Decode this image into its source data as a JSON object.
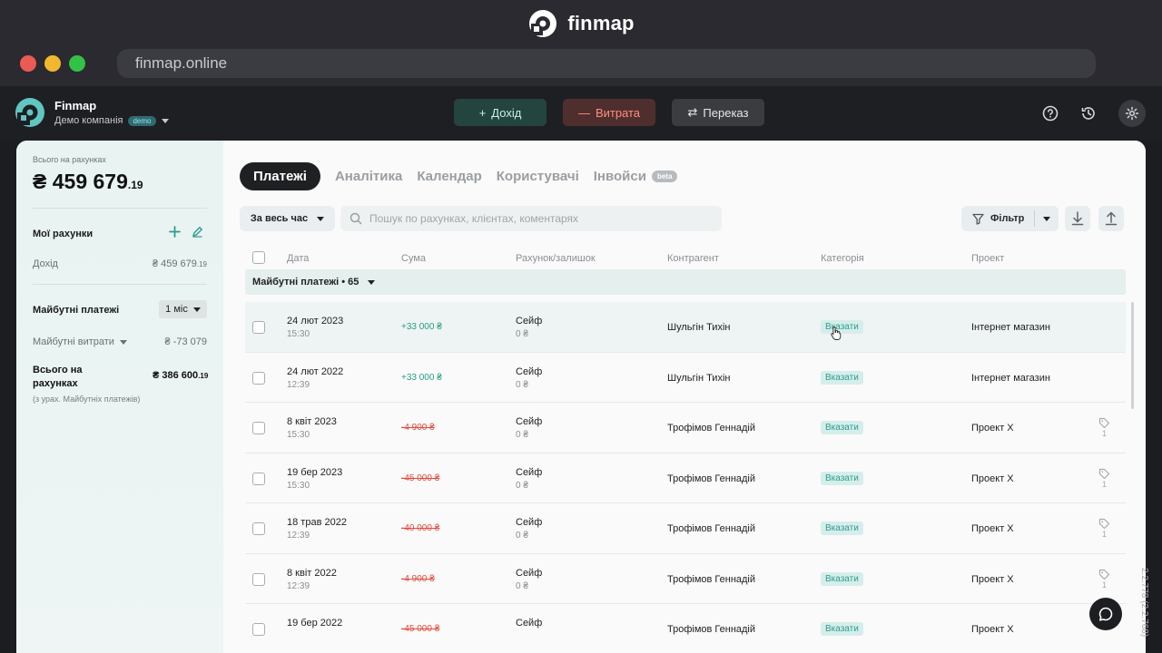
{
  "browser": {
    "brand": "finmap",
    "url": "finmap.online"
  },
  "app": {
    "company_name": "Finmap",
    "company_sub": "Демо компанія",
    "demo_badge": "demo",
    "actions": {
      "income": "Дохід",
      "expense": "Витрата",
      "transfer": "Переказ"
    }
  },
  "sidebar": {
    "total_label": "Всього на рахунках",
    "total_main": "₴ 459 679",
    "total_cents": ".19",
    "my_accounts": "Мої рахунки",
    "income_label": "Дохід",
    "income_value": "₴ 459 679",
    "income_cents": ".19",
    "future_payments": "Майбутні платежі",
    "period": "1 міс",
    "future_expenses_label": "Майбутні витрати",
    "future_expenses_value": "₴ -73 079",
    "total_accounts_line1": "Всього на",
    "total_accounts_line2": "рахунках",
    "total_accounts_value": "₴ 386 600",
    "total_accounts_cents": ".19",
    "note": "(з урах. Майбутніх платежів)"
  },
  "tabs": [
    {
      "label": "Платежі"
    },
    {
      "label": "Аналітика"
    },
    {
      "label": "Календар"
    },
    {
      "label": "Користувачі"
    },
    {
      "label": "Інвойси"
    }
  ],
  "beta_badge": "beta",
  "toolbar": {
    "period": "За весь час",
    "search_placeholder": "Пошук по рахунках, клієнтах, коментарях",
    "filter": "Фільтр"
  },
  "columns": {
    "date": "Дата",
    "amount": "Сума",
    "account": "Рахунок/залишок",
    "counterparty": "Контрагент",
    "category": "Категорія",
    "project": "Проект"
  },
  "group_label": "Майбутні платежі • 65",
  "rows": [
    {
      "date": "24 лют 2023",
      "time": "15:30",
      "amount": "+33 000 ₴",
      "account": "Сейф",
      "balance": "0 ₴",
      "party": "Шульгін Тихін",
      "category": "Вказати",
      "project": "Інтернет магазин",
      "tag": ""
    },
    {
      "date": "24 лют 2022",
      "time": "12:39",
      "amount": "+33 000 ₴",
      "account": "Сейф",
      "balance": "0 ₴",
      "party": "Шульгін Тихін",
      "category": "Вказати",
      "project": "Інтернет магазин",
      "tag": ""
    },
    {
      "date": "8 квіт 2023",
      "time": "15:30",
      "amount": "-4 900 ₴",
      "account": "Сейф",
      "balance": "0 ₴",
      "party": "Трофімов Геннадій",
      "category": "Вказати",
      "project": "Проект X",
      "tag": "1"
    },
    {
      "date": "19 бер 2023",
      "time": "15:30",
      "amount": "-45 000 ₴",
      "account": "Сейф",
      "balance": "0 ₴",
      "party": "Трофімов Геннадій",
      "category": "Вказати",
      "project": "Проект X",
      "tag": "1"
    },
    {
      "date": "18 трав 2022",
      "time": "12:39",
      "amount": "-40 000 ₴",
      "account": "Сейф",
      "balance": "0 ₴",
      "party": "Трофімов Геннадій",
      "category": "Вказати",
      "project": "Проект X",
      "tag": "1"
    },
    {
      "date": "8 квіт 2022",
      "time": "12:39",
      "amount": "-4 900 ₴",
      "account": "Сейф",
      "balance": "0 ₴",
      "party": "Трофімов Геннадій",
      "category": "Вказати",
      "project": "Проект X",
      "tag": "1"
    },
    {
      "date": "19 бер 2022",
      "time": "",
      "amount": "-45 000 ₴",
      "account": "Сейф",
      "balance": "",
      "party": "Трофімов Геннадій",
      "category": "Вказати",
      "project": "Проект X",
      "tag": ""
    }
  ],
  "version": "2.2.778 (2.2.768)",
  "colors": {
    "accent": "#2e9c8f",
    "income": "#27a084",
    "expense": "#e14a3c",
    "dark": "#1e1f23"
  },
  "icons": [
    "finmap-logo-icon",
    "help-icon",
    "history-icon",
    "settings-icon",
    "plus-icon",
    "edit-icon",
    "search-icon",
    "filter-icon",
    "download-icon",
    "upload-icon",
    "tag-icon",
    "chat-icon",
    "chevron-down-icon"
  ]
}
